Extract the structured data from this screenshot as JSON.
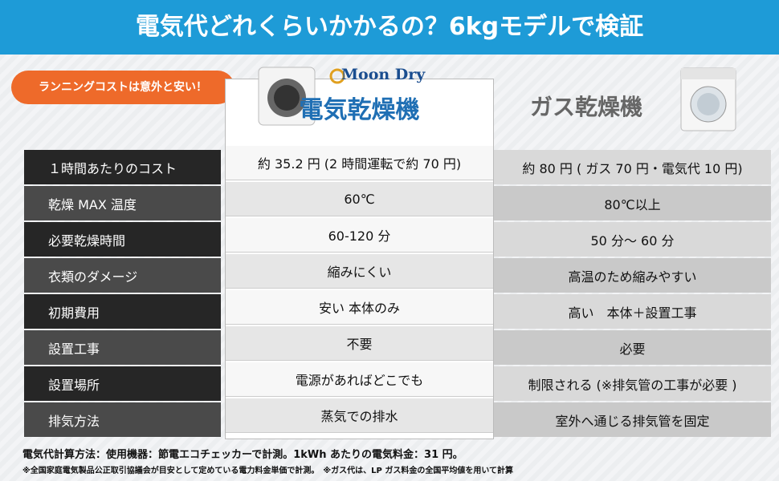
{
  "header": {
    "title": "電気代どれくらいかかるの？6kgモデルで検証"
  },
  "badge": "ランニングコストは意外と安い！",
  "columns": {
    "brand": "Moon Dry",
    "electric": "電気乾燥機",
    "gas": "ガス乾燥機"
  },
  "rows": [
    {
      "label": "１時間あたりのコスト",
      "electric": "約 35.2 円 (2 時間運転で約 70 円)",
      "gas": "約 80 円 ( ガス 70 円・電気代 10 円)"
    },
    {
      "label": "乾燥 MAX 温度",
      "electric": "60℃",
      "gas": "80℃以上"
    },
    {
      "label": "必要乾燥時間",
      "electric": "60-120 分",
      "gas": "50 分～ 60 分"
    },
    {
      "label": "衣類のダメージ",
      "electric": "縮みにくい",
      "gas": "高温のため縮みやすい"
    },
    {
      "label": "初期費用",
      "electric": "安い 本体のみ",
      "gas": "高い　本体＋設置工事"
    },
    {
      "label": "設置工事",
      "electric": "不要",
      "gas": "必要"
    },
    {
      "label": "設置場所",
      "electric": "電源があればどこでも",
      "gas": "制限される (※排気管の工事が必要 )"
    },
    {
      "label": "排気方法",
      "electric": "蒸気での排水",
      "gas": "室外へ通じる排気管を固定"
    }
  ],
  "footnotes": [
    "電気代計算方法：使用機器：節電エコチェッカーで計測。1kWh あたりの電気料金：31 円。",
    "※全国家庭電気製品公正取引協議会が目安として定めている電力料金単価で計測。　※ガス代は、LP ガス料金の全国平均値を用いて計算"
  ]
}
